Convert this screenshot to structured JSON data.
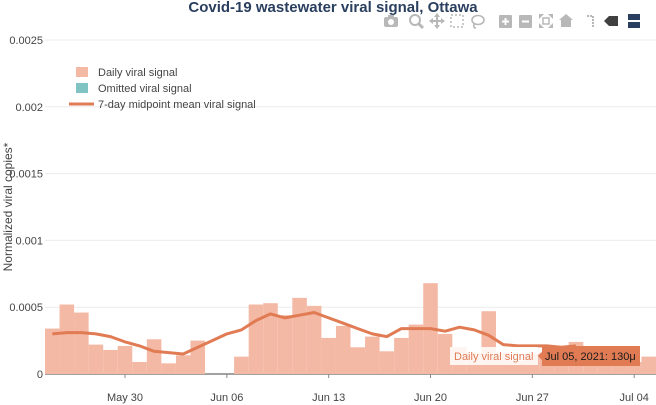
{
  "chart_data": {
    "type": "bar",
    "title": "Covid-19 wastewater viral signal, Ottawa",
    "xlabel": "",
    "ylabel": "Normalized viral copies*",
    "ylim": [
      0,
      0.0025
    ],
    "y_ticks": [
      "0",
      "0.0005",
      "0.001",
      "0.0015",
      "0.002",
      "0.0025"
    ],
    "y_tick_values": [
      0,
      0.0005,
      0.001,
      0.0015,
      0.002,
      0.0025
    ],
    "x_range": [
      "2021-05-25",
      "2021-07-05"
    ],
    "x_ticks": [
      "May 30",
      "Jun 06",
      "Jun 13",
      "Jun 20",
      "Jun 27",
      "Jul 04"
    ],
    "x_tick_dates": [
      "2021-05-30",
      "2021-06-06",
      "2021-06-13",
      "2021-06-20",
      "2021-06-27",
      "2021-07-04"
    ],
    "grid": true,
    "legend_position": "top-left",
    "legend": {
      "daily": "Daily viral signal",
      "omitted": "Omitted viral signal",
      "mean": "7-day midpoint mean viral signal"
    },
    "colors": {
      "daily": "#f4b9a4",
      "omitted": "#7fc3c3",
      "mean": "#e07b54",
      "hover_bg": "#e07b54",
      "title": "#2a3f5f"
    },
    "series": [
      {
        "name": "Daily viral signal",
        "dates": [
          "2021-05-25",
          "2021-05-26",
          "2021-05-27",
          "2021-05-28",
          "2021-05-29",
          "2021-05-30",
          "2021-05-31",
          "2021-06-01",
          "2021-06-02",
          "2021-06-03",
          "2021-06-04",
          "2021-06-05",
          "2021-06-07",
          "2021-06-08",
          "2021-06-09",
          "2021-06-10",
          "2021-06-11",
          "2021-06-12",
          "2021-06-13",
          "2021-06-14",
          "2021-06-15",
          "2021-06-16",
          "2021-06-17",
          "2021-06-18",
          "2021-06-19",
          "2021-06-20",
          "2021-06-21",
          "2021-06-22",
          "2021-06-23",
          "2021-06-24",
          "2021-06-25",
          "2021-06-26",
          "2021-06-27",
          "2021-06-28",
          "2021-06-29",
          "2021-06-30",
          "2021-07-01",
          "2021-07-02",
          "2021-07-03",
          "2021-07-04",
          "2021-07-05"
        ],
        "values": [
          0.00034,
          0.00052,
          0.00046,
          0.00022,
          0.00018,
          0.00021,
          9e-05,
          0.00026,
          8e-05,
          0.00014,
          0.00025,
          0.0,
          0.00013,
          0.00052,
          0.00053,
          0.00044,
          0.00057,
          0.00051,
          0.00027,
          0.00036,
          0.0002,
          0.00028,
          0.00017,
          0.00027,
          0.00037,
          0.00068,
          0.0003,
          0.0002,
          0.00016,
          0.00047,
          0.00016,
          0.0001,
          0.00015,
          0.00016,
          6e-05,
          0.00024,
          8e-05,
          0.00013,
          8e-05,
          9e-05,
          0.00013
        ]
      },
      {
        "name": "7-day midpoint mean viral signal",
        "dates": [
          "2021-05-25",
          "2021-05-26",
          "2021-05-27",
          "2021-05-28",
          "2021-05-29",
          "2021-05-30",
          "2021-05-31",
          "2021-06-01",
          "2021-06-02",
          "2021-06-03",
          "2021-06-04",
          "2021-06-05",
          "2021-06-06",
          "2021-06-07",
          "2021-06-08",
          "2021-06-09",
          "2021-06-10",
          "2021-06-11",
          "2021-06-12",
          "2021-06-13",
          "2021-06-14",
          "2021-06-15",
          "2021-06-16",
          "2021-06-17",
          "2021-06-18",
          "2021-06-19",
          "2021-06-20",
          "2021-06-21",
          "2021-06-22",
          "2021-06-23",
          "2021-06-24",
          "2021-06-25",
          "2021-06-26",
          "2021-06-27",
          "2021-06-28",
          "2021-06-29",
          "2021-06-30"
        ],
        "values": [
          0.0003,
          0.00031,
          0.00031,
          0.0003,
          0.00028,
          0.00024,
          0.00021,
          0.00017,
          0.00016,
          0.00015,
          0.0002,
          0.00025,
          0.0003,
          0.00033,
          0.0004,
          0.00045,
          0.00042,
          0.00044,
          0.00046,
          0.00042,
          0.00038,
          0.00034,
          0.0003,
          0.00028,
          0.00034,
          0.00034,
          0.00034,
          0.00032,
          0.00035,
          0.00033,
          0.00029,
          0.00022,
          0.00021,
          0.00021,
          0.00021,
          0.0002,
          0.00021
        ]
      }
    ],
    "hover": {
      "label": "Daily viral signal",
      "value": "Jul 05, 2021: 130μ"
    }
  },
  "modebar": {
    "buttons": [
      "camera-icon",
      "zoom-icon",
      "pan-icon",
      "box-select-icon",
      "lasso-icon",
      "zoom-in-icon",
      "zoom-out-icon",
      "autoscale-icon",
      "reset-axes-icon",
      "spike-lines-icon",
      "hover-closest-icon",
      "hover-compare-icon"
    ]
  }
}
